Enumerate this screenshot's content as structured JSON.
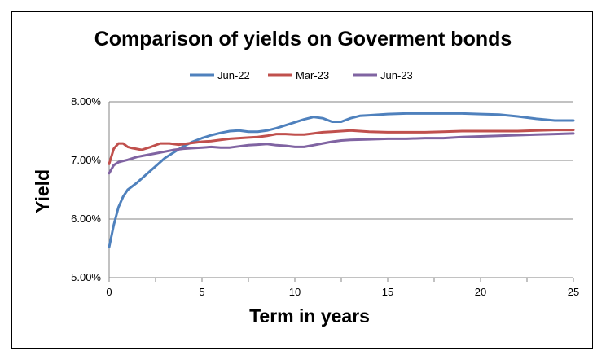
{
  "chart_data": {
    "type": "line",
    "title": "Comparison of yields on Goverment bonds",
    "xlabel": "Term in years",
    "ylabel": "Yield",
    "xlim": [
      0,
      25
    ],
    "ylim": [
      0.05,
      0.08
    ],
    "x_ticks": [
      "0",
      "5",
      "10",
      "15",
      "20",
      "25"
    ],
    "y_ticks": [
      "5.00%",
      "6.00%",
      "7.00%",
      "8.00%"
    ],
    "grid": "horizontal",
    "legend_position": "top",
    "series": [
      {
        "name": "Jun-22",
        "color": "#4F81BD",
        "x": [
          0,
          0.25,
          0.5,
          0.75,
          1,
          1.5,
          2,
          2.5,
          3,
          3.5,
          4,
          4.5,
          5,
          5.5,
          6,
          6.5,
          7,
          7.5,
          8,
          8.5,
          9,
          9.5,
          10,
          10.5,
          11,
          11.5,
          12,
          12.5,
          13,
          13.5,
          14,
          15,
          16,
          17,
          18,
          19,
          20,
          21,
          22,
          23,
          24,
          25
        ],
        "values": [
          0.0552,
          0.059,
          0.062,
          0.0638,
          0.065,
          0.0662,
          0.0676,
          0.069,
          0.0704,
          0.0714,
          0.0724,
          0.0732,
          0.0738,
          0.0743,
          0.0747,
          0.075,
          0.0751,
          0.0749,
          0.0749,
          0.0751,
          0.0755,
          0.076,
          0.0765,
          0.077,
          0.0774,
          0.0772,
          0.0766,
          0.0766,
          0.0772,
          0.0776,
          0.0777,
          0.0779,
          0.078,
          0.078,
          0.078,
          0.078,
          0.0779,
          0.0778,
          0.0775,
          0.0771,
          0.0768,
          0.0768
        ]
      },
      {
        "name": "Mar-23",
        "color": "#C0504D",
        "x": [
          0,
          0.25,
          0.5,
          0.75,
          1,
          1.25,
          1.75,
          2.25,
          2.75,
          3.25,
          3.75,
          4.25,
          5,
          5.5,
          6,
          6.5,
          7,
          7.5,
          8,
          8.5,
          9,
          9.5,
          10,
          10.5,
          11,
          11.5,
          12,
          12.5,
          13,
          14,
          15,
          16,
          17,
          18,
          19,
          20,
          21,
          22,
          23,
          24,
          25
        ],
        "values": [
          0.0694,
          0.072,
          0.0729,
          0.0729,
          0.0723,
          0.0721,
          0.0718,
          0.0723,
          0.0729,
          0.0729,
          0.0727,
          0.0729,
          0.0732,
          0.0733,
          0.0735,
          0.0737,
          0.0738,
          0.0739,
          0.074,
          0.0742,
          0.0745,
          0.0745,
          0.0744,
          0.0744,
          0.0746,
          0.0748,
          0.0749,
          0.075,
          0.0751,
          0.0749,
          0.0748,
          0.0748,
          0.0748,
          0.0749,
          0.075,
          0.075,
          0.075,
          0.075,
          0.0751,
          0.0752,
          0.0752
        ]
      },
      {
        "name": "Jun-23",
        "color": "#8064A2",
        "x": [
          0,
          0.25,
          0.5,
          0.75,
          1,
          1.5,
          2,
          2.5,
          3,
          3.5,
          4,
          4.5,
          5,
          5.5,
          6,
          6.5,
          7,
          7.5,
          8,
          8.5,
          9,
          9.5,
          10,
          10.5,
          11,
          11.5,
          12,
          12.5,
          13,
          14,
          15,
          16,
          17,
          18,
          19,
          20,
          21,
          22,
          23,
          24,
          25
        ],
        "values": [
          0.0678,
          0.0692,
          0.0697,
          0.0699,
          0.0701,
          0.0706,
          0.0709,
          0.0712,
          0.0715,
          0.0718,
          0.072,
          0.0721,
          0.0722,
          0.0723,
          0.0722,
          0.0722,
          0.0724,
          0.0726,
          0.0727,
          0.0728,
          0.0726,
          0.0725,
          0.0723,
          0.0723,
          0.0726,
          0.0729,
          0.0732,
          0.0734,
          0.0735,
          0.0736,
          0.0737,
          0.0737,
          0.0738,
          0.0738,
          0.074,
          0.0741,
          0.0742,
          0.0743,
          0.0744,
          0.0745,
          0.0746
        ]
      }
    ]
  }
}
